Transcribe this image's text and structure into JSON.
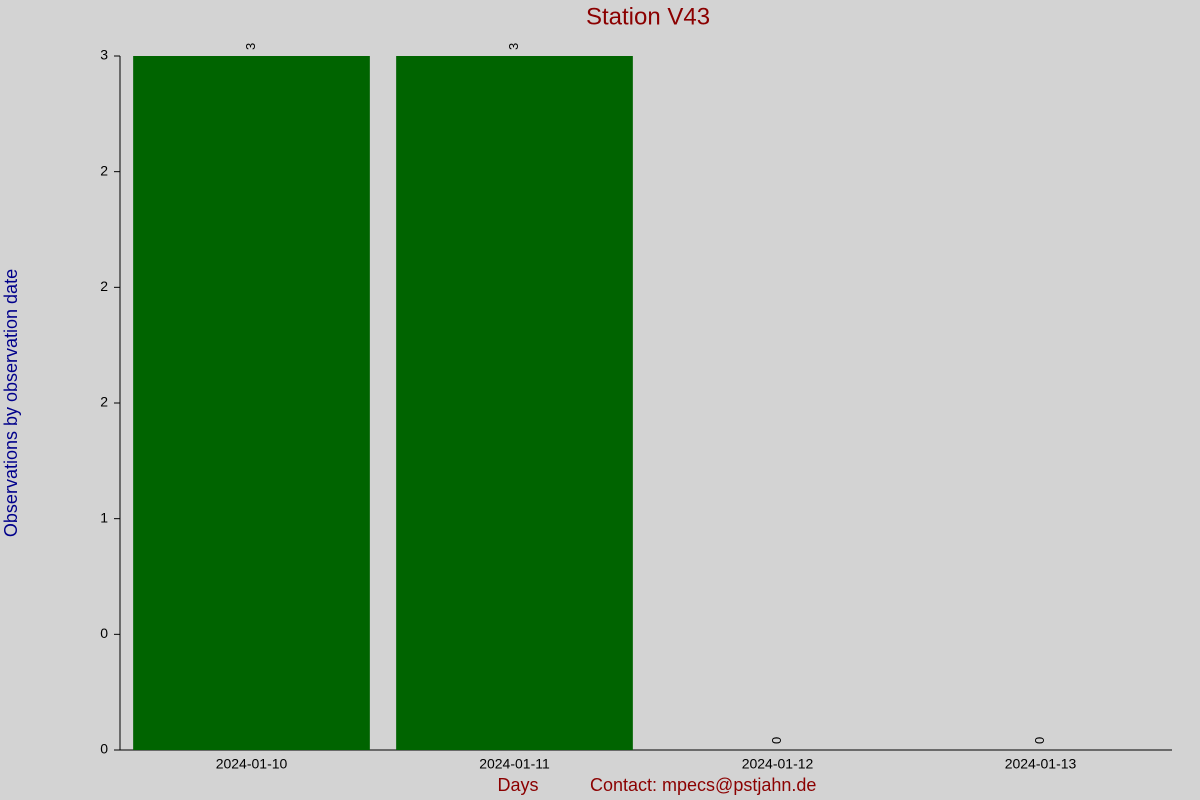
{
  "chart_data": {
    "type": "bar",
    "title": "Station V43",
    "x_label": "Days",
    "y_label": "Observations by observation date",
    "annotation": "Contact: mpecs@pstjahn.de",
    "categories": [
      "2024-01-10",
      "2024-01-11",
      "2024-01-12",
      "2024-01-13"
    ],
    "values": [
      3,
      3,
      0,
      0
    ],
    "color": "#006400",
    "ylim": [
      0,
      3
    ],
    "yticks": [
      0,
      {
        "value": 0.5,
        "label": "0"
      },
      1,
      {
        "value": 1.5,
        "label": "2"
      },
      2,
      {
        "value": 2.5,
        "label": "2"
      },
      3
    ],
    "grid": false
  }
}
